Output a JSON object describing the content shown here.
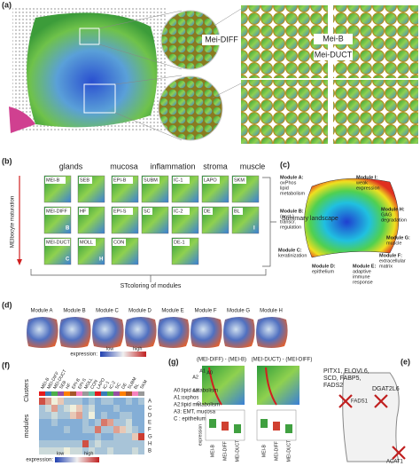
{
  "panel_a": {
    "label": "(a)",
    "callouts": [
      "Mei-DIFF",
      "Mei-B",
      "Mei-DUCT"
    ]
  },
  "panel_b": {
    "label": "(b)",
    "groups": [
      "glands",
      "mucosa",
      "inflammation",
      "stroma",
      "muscle"
    ],
    "axis": "MEIbocyte maturation",
    "rows": [
      [
        {
          "name": "MEI-B"
        },
        {
          "name": "SEB"
        },
        {
          "name": "EPI-B"
        },
        {
          "name": "SUBM"
        },
        {
          "name": "IC-1"
        },
        {
          "name": "LAPO"
        },
        {
          "name": "SKM"
        }
      ],
      [
        {
          "name": "MEI-DIFF",
          "letter": "B"
        },
        {
          "name": "HF"
        },
        {
          "name": "EPI-S"
        },
        {
          "name": "SC"
        },
        {
          "name": "IC-2"
        },
        {
          "name": "DE"
        },
        {
          "name": "BL",
          "letter": "I"
        }
      ],
      [
        {
          "name": "MEI-DUCT",
          "letter": "C"
        },
        {
          "name": "MOLL",
          "letter": "H"
        },
        {
          "name": "CON"
        },
        {
          "name": "DE-1"
        }
      ]
    ],
    "summary": "Summary landscape",
    "footer": "STcoloring of modules"
  },
  "panel_c": {
    "label": "(c)",
    "modules": [
      {
        "name": "Module A:",
        "desc": [
          "oxPhos",
          "lipid",
          "metabolism"
        ]
      },
      {
        "name": "Module I:",
        "desc": [
          "weak",
          "expression"
        ]
      },
      {
        "name": "Module B:",
        "desc": [
          "(post-)",
          "transcr.",
          "regulation"
        ]
      },
      {
        "name": "Module H:",
        "desc": [
          "GAG",
          "degradation"
        ]
      },
      {
        "name": "Module G:",
        "desc": [
          "muscle"
        ]
      },
      {
        "name": "Module C:",
        "desc": [
          "keratinization"
        ]
      },
      {
        "name": "Module F:",
        "desc": [
          "extracellular",
          "matrix"
        ]
      },
      {
        "name": "Module D:",
        "desc": [
          "epithelium"
        ]
      },
      {
        "name": "Module E:",
        "desc": [
          "adaptive",
          "immune",
          "response"
        ]
      }
    ]
  },
  "panel_d": {
    "label": "(d)",
    "modules": [
      "Module A",
      "Module B",
      "Module C",
      "Module D",
      "Module E",
      "Module F",
      "Module G",
      "Module H"
    ],
    "legend": "expression:",
    "low": "low",
    "high": "high"
  },
  "panel_e": {
    "label": "(e)",
    "genes": "PITX1, ELOVL6,\nSCD, FABP5,\nFADS2",
    "marks": [
      "DGAT2L6",
      "FADS1",
      "ACAT1"
    ]
  },
  "panel_f": {
    "label": "(f)",
    "ylabel_top": "Clusters",
    "ylabel": "modules",
    "columns": [
      "MEI-B",
      "MEI-DIFF",
      "MEI-DUCT",
      "SEB",
      "HF",
      "EPI-B",
      "EPI-S",
      "MOLL",
      "CON",
      "LAPO",
      "IC-1",
      "IC-2",
      "SC",
      "DE",
      "SUBM",
      "BL",
      "SKM"
    ],
    "rows": [
      "A",
      "C",
      "D",
      "E",
      "F",
      "G",
      "H",
      "B"
    ],
    "values": [
      [
        0.9,
        0.7,
        0.5,
        0.6,
        0.3,
        0.3,
        0.3,
        0.2,
        0.3,
        0.2,
        0.3,
        0.3,
        0.2,
        0.2,
        0.3,
        0.2,
        0.3
      ],
      [
        0.3,
        0.4,
        0.7,
        0.3,
        0.4,
        0.5,
        0.6,
        0.3,
        0.4,
        0.2,
        0.2,
        0.2,
        0.3,
        0.2,
        0.2,
        0.2,
        0.2
      ],
      [
        0.3,
        0.3,
        0.4,
        0.3,
        0.3,
        0.6,
        0.7,
        0.3,
        0.5,
        0.2,
        0.3,
        0.2,
        0.2,
        0.3,
        0.3,
        0.2,
        0.2
      ],
      [
        0.2,
        0.2,
        0.3,
        0.2,
        0.2,
        0.2,
        0.2,
        0.3,
        0.2,
        0.3,
        0.8,
        0.7,
        0.3,
        0.3,
        0.4,
        0.2,
        0.2
      ],
      [
        0.2,
        0.2,
        0.2,
        0.2,
        0.3,
        0.2,
        0.2,
        0.3,
        0.3,
        0.8,
        0.3,
        0.3,
        0.7,
        0.6,
        0.4,
        0.3,
        0.2
      ],
      [
        0.2,
        0.2,
        0.2,
        0.2,
        0.2,
        0.2,
        0.2,
        0.2,
        0.2,
        0.3,
        0.2,
        0.2,
        0.3,
        0.3,
        0.3,
        0.6,
        0.95
      ],
      [
        0.3,
        0.3,
        0.3,
        0.3,
        0.3,
        0.3,
        0.3,
        0.9,
        0.3,
        0.4,
        0.3,
        0.3,
        0.3,
        0.3,
        0.3,
        0.3,
        0.3
      ],
      [
        0.4,
        0.4,
        0.4,
        0.4,
        0.5,
        0.4,
        0.4,
        0.3,
        0.4,
        0.3,
        0.3,
        0.4,
        0.3,
        0.3,
        0.3,
        0.4,
        0.3
      ]
    ],
    "legend": "expression:",
    "low": "low",
    "high": "high"
  },
  "panel_g": {
    "label": "(g)",
    "titles": [
      "(MEI-DIFF) - (MEI-B)",
      "(MEI-DUCT) - (MEI-DIFF)"
    ],
    "legend": [
      "A0:lipid  catabolism",
      "A1:oxphos",
      "A2:lipid metabolism",
      "A3: EMT, mucosa",
      "C : epithelium"
    ],
    "map_labels": [
      "A1",
      "A2",
      "A0",
      "A3",
      "C"
    ],
    "ylabel": "expression",
    "xlabels": [
      "MEI-B",
      "MEI-DIFF",
      "MEI-DUCT"
    ]
  }
}
